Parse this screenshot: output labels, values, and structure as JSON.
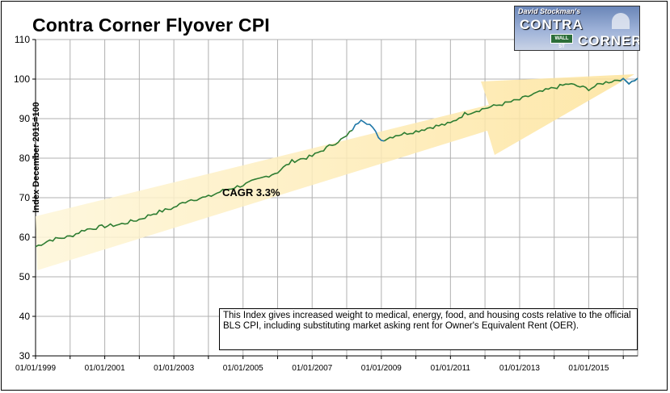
{
  "chart_data": {
    "type": "line",
    "title": "Contra Corner Flyover CPI",
    "ylabel": "Index December 2015=100",
    "xlabel": "",
    "ylim": [
      30,
      110
    ],
    "y_ticks": [
      "30",
      "40",
      "50",
      "60",
      "70",
      "80",
      "90",
      "100",
      "110"
    ],
    "x_ticks": [
      "01/01/1999",
      "01/01/2001",
      "01/01/2003",
      "01/01/2005",
      "01/01/2007",
      "01/01/2009",
      "01/01/2011",
      "01/01/2013",
      "01/01/2015"
    ],
    "xlim": [
      "1999-01-01",
      "2016-06-01"
    ],
    "grid": true,
    "legend": "none",
    "line_color": "#2e7d32",
    "highlight_color": "#1f77a8",
    "trend_arrow_color": "#fde9a8",
    "annotation": "CAGR 3.3%",
    "series": [
      {
        "points": [
          [
            "1999-01-01",
            57.6
          ],
          [
            "1999-06-01",
            59.3
          ],
          [
            "2000-01-01",
            60.2
          ],
          [
            "2000-06-01",
            61.9
          ],
          [
            "2001-01-01",
            62.8
          ],
          [
            "2001-06-01",
            63.2
          ],
          [
            "2002-01-01",
            64.5
          ],
          [
            "2002-06-01",
            66.0
          ],
          [
            "2003-01-01",
            67.5
          ],
          [
            "2003-06-01",
            69.4
          ],
          [
            "2004-01-01",
            70.2
          ],
          [
            "2004-06-01",
            71.8
          ],
          [
            "2005-01-01",
            73.2
          ],
          [
            "2005-06-01",
            74.5
          ],
          [
            "2006-01-01",
            76.5
          ],
          [
            "2006-06-01",
            79.2
          ],
          [
            "2007-01-01",
            80.5
          ],
          [
            "2007-06-01",
            82.6
          ],
          [
            "2008-01-01",
            85.5
          ],
          [
            "2008-06-01",
            90.0
          ],
          [
            "2008-09-01",
            88.5
          ],
          [
            "2009-01-01",
            84.5
          ],
          [
            "2009-06-01",
            85.8
          ],
          [
            "2010-01-01",
            86.8
          ],
          [
            "2010-06-01",
            87.8
          ],
          [
            "2011-01-01",
            88.8
          ],
          [
            "2011-06-01",
            91.2
          ],
          [
            "2012-01-01",
            92.6
          ],
          [
            "2012-06-01",
            93.5
          ],
          [
            "2013-01-01",
            94.8
          ],
          [
            "2013-06-01",
            96.2
          ],
          [
            "2014-01-01",
            97.8
          ],
          [
            "2014-06-01",
            98.8
          ],
          [
            "2015-01-01",
            97.5
          ],
          [
            "2015-06-01",
            99.0
          ],
          [
            "2015-12-01",
            100.0
          ],
          [
            "2016-03-01",
            99.2
          ],
          [
            "2016-06-01",
            100.2
          ]
        ]
      }
    ]
  },
  "note": {
    "text": "This Index gives increased weight to medical, energy, food, and housing costs relative to the official BLS CPI, including substituting market asking rent for Owner's Equivalent Rent (OER)."
  },
  "logo": {
    "top_text": "David Stockman's",
    "word1": "CONTRA",
    "word2": "CORNER",
    "sign": "WALL ST"
  }
}
